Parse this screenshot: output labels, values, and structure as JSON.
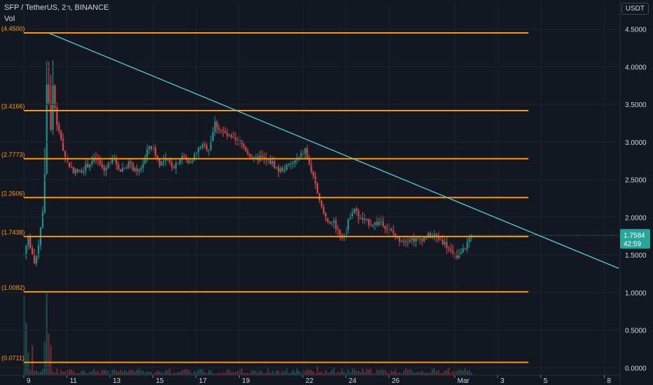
{
  "header": {
    "ticker_line": "SFP / TetherUS, 2h, BINANCE",
    "volume_label": "Vol",
    "currency": "USDT"
  },
  "price_tag": {
    "price": "1.7584",
    "countdown": "42:59"
  },
  "colors": {
    "background": "#131722",
    "bull": "#26a69a",
    "bear": "#ef5350",
    "level_line": "#ff9800",
    "trendline": "#4dd0e1",
    "price_tag": "#26a69a",
    "grid": "#1e222d",
    "axis_text": "#d1d4dc",
    "level_text": "#ff9800"
  },
  "chart_data": {
    "type": "candlestick",
    "x_axis": {
      "tick_labels": [
        "9",
        "11",
        "13",
        "15",
        "17",
        "19",
        "22",
        "24",
        "26",
        "Mar",
        "3",
        "5",
        "8"
      ],
      "tick_index": [
        0,
        21,
        42,
        63,
        84,
        105,
        136,
        157,
        178,
        210,
        231,
        252,
        283
      ],
      "range_index": [
        0,
        290
      ]
    },
    "y_axis": {
      "tick_labels": [
        "4.5000",
        "4.0000",
        "3.5000",
        "3.0000",
        "2.5000",
        "2.0000",
        "1.5000",
        "1.0000",
        "0.5000",
        "0.0000"
      ],
      "ticks": [
        4.5,
        4.0,
        3.5,
        3.0,
        2.5,
        2.0,
        1.5,
        1.0,
        0.5,
        0.0
      ],
      "range": [
        -0.1,
        4.85
      ]
    },
    "levels": [
      {
        "label": "(4.4500)",
        "value": 4.45
      },
      {
        "label": "(3.4166)",
        "value": 3.4166
      },
      {
        "label": "(2.7773)",
        "value": 2.7773
      },
      {
        "label": "(2.2606)",
        "value": 2.2606
      },
      {
        "label": "(1.7438)",
        "value": 1.7438
      },
      {
        "label": "(1.0082)",
        "value": 1.0082
      },
      {
        "label": "(0.0711)",
        "value": 0.0711
      }
    ],
    "levels_end_index": 246,
    "trendline": {
      "start": [
        12,
        4.45
      ],
      "end": [
        290,
        1.32
      ]
    },
    "current_price": 1.7584,
    "last_index": 218,
    "price_path": [
      [
        0,
        1.5
      ],
      [
        2,
        1.75
      ],
      [
        4,
        1.5
      ],
      [
        5,
        1.35
      ],
      [
        7,
        1.65
      ],
      [
        9,
        2.1
      ],
      [
        10,
        2.6
      ],
      [
        11,
        3.75
      ],
      [
        12,
        3.55
      ],
      [
        13,
        3.15
      ],
      [
        14,
        3.75
      ],
      [
        16,
        3.2
      ],
      [
        18,
        3.05
      ],
      [
        19,
        2.9
      ],
      [
        21,
        2.72
      ],
      [
        24,
        2.62
      ],
      [
        27,
        2.6
      ],
      [
        32,
        2.72
      ],
      [
        35,
        2.78
      ],
      [
        39,
        2.62
      ],
      [
        43,
        2.8
      ],
      [
        47,
        2.62
      ],
      [
        51,
        2.72
      ],
      [
        55,
        2.58
      ],
      [
        58,
        2.72
      ],
      [
        61,
        2.95
      ],
      [
        63,
        2.9
      ],
      [
        66,
        2.72
      ],
      [
        69,
        2.75
      ],
      [
        73,
        2.68
      ],
      [
        77,
        2.82
      ],
      [
        80,
        2.72
      ],
      [
        83,
        2.82
      ],
      [
        86,
        2.95
      ],
      [
        90,
        2.92
      ],
      [
        93,
        3.25
      ],
      [
        96,
        3.15
      ],
      [
        99,
        3.08
      ],
      [
        103,
        3.0
      ],
      [
        105,
        3.0
      ],
      [
        108,
        2.9
      ],
      [
        112,
        2.75
      ],
      [
        115,
        2.8
      ],
      [
        118,
        2.75
      ],
      [
        121,
        2.72
      ],
      [
        124,
        2.62
      ],
      [
        127,
        2.65
      ],
      [
        131,
        2.72
      ],
      [
        134,
        2.78
      ],
      [
        137,
        2.9
      ],
      [
        139,
        2.68
      ],
      [
        141,
        2.55
      ],
      [
        143,
        2.28
      ],
      [
        145,
        2.12
      ],
      [
        147,
        1.98
      ],
      [
        149,
        1.95
      ],
      [
        151,
        1.92
      ],
      [
        153,
        1.82
      ],
      [
        155,
        1.75
      ],
      [
        157,
        1.83
      ],
      [
        159,
        2.05
      ],
      [
        161,
        2.12
      ],
      [
        163,
        2.0
      ],
      [
        166,
        1.95
      ],
      [
        169,
        1.92
      ],
      [
        172,
        1.92
      ],
      [
        174,
        1.95
      ],
      [
        177,
        1.85
      ],
      [
        180,
        1.78
      ],
      [
        182,
        1.72
      ],
      [
        185,
        1.7
      ],
      [
        188,
        1.72
      ],
      [
        191,
        1.7
      ],
      [
        194,
        1.72
      ],
      [
        197,
        1.75
      ],
      [
        200,
        1.75
      ],
      [
        203,
        1.7
      ],
      [
        205,
        1.65
      ],
      [
        207,
        1.58
      ],
      [
        209,
        1.5
      ],
      [
        211,
        1.45
      ],
      [
        213,
        1.52
      ],
      [
        215,
        1.6
      ],
      [
        217,
        1.72
      ],
      [
        218,
        1.7584
      ]
    ],
    "volume": {
      "baseline_value": -0.1,
      "units_per_price": 1.0,
      "spikes": [
        [
          0,
          1.05
        ],
        [
          1,
          0.7
        ],
        [
          2,
          0.3
        ],
        [
          4,
          0.4
        ],
        [
          11,
          1.1
        ],
        [
          12,
          0.55
        ],
        [
          10,
          0.45
        ],
        [
          13,
          0.4
        ],
        [
          143,
          0.12
        ],
        [
          207,
          0.1
        ],
        [
          151,
          0.1
        ]
      ],
      "base_level": 0.07
    }
  }
}
